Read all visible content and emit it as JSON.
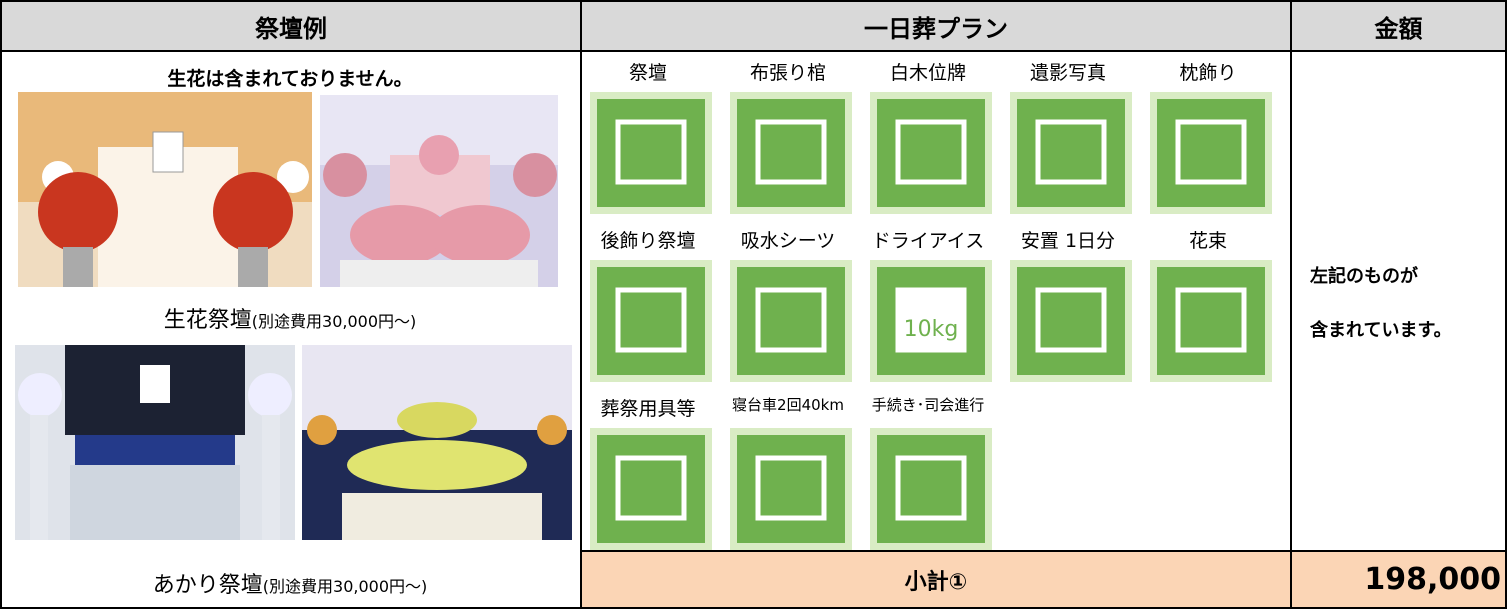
{
  "header": {
    "columns": [
      "祭壇例",
      "一日葬プラン",
      "金額"
    ]
  },
  "examples": {
    "note": "生花は含まれておりません。",
    "captions": [
      {
        "main": "生花祭壇",
        "sub": "(別途費用30,000円～)"
      },
      {
        "main": "あかり祭壇",
        "sub": "(別途費用30,000円～)"
      }
    ]
  },
  "plan": {
    "items": [
      "祭壇",
      "布張り棺",
      "白木位牌",
      "遺影写真",
      "枕飾り",
      "後飾り祭壇",
      "吸水シーツ",
      "ドライアイス",
      "安置 1日分",
      "花束",
      "葬祭用具等",
      "寝台車2回40km",
      "手続き･司会進行"
    ],
    "icon_text": "10kg"
  },
  "amount": {
    "note": [
      "左記のものが",
      "含まれています。"
    ]
  },
  "subtotal": {
    "label": "小計①",
    "value": "198,000"
  }
}
